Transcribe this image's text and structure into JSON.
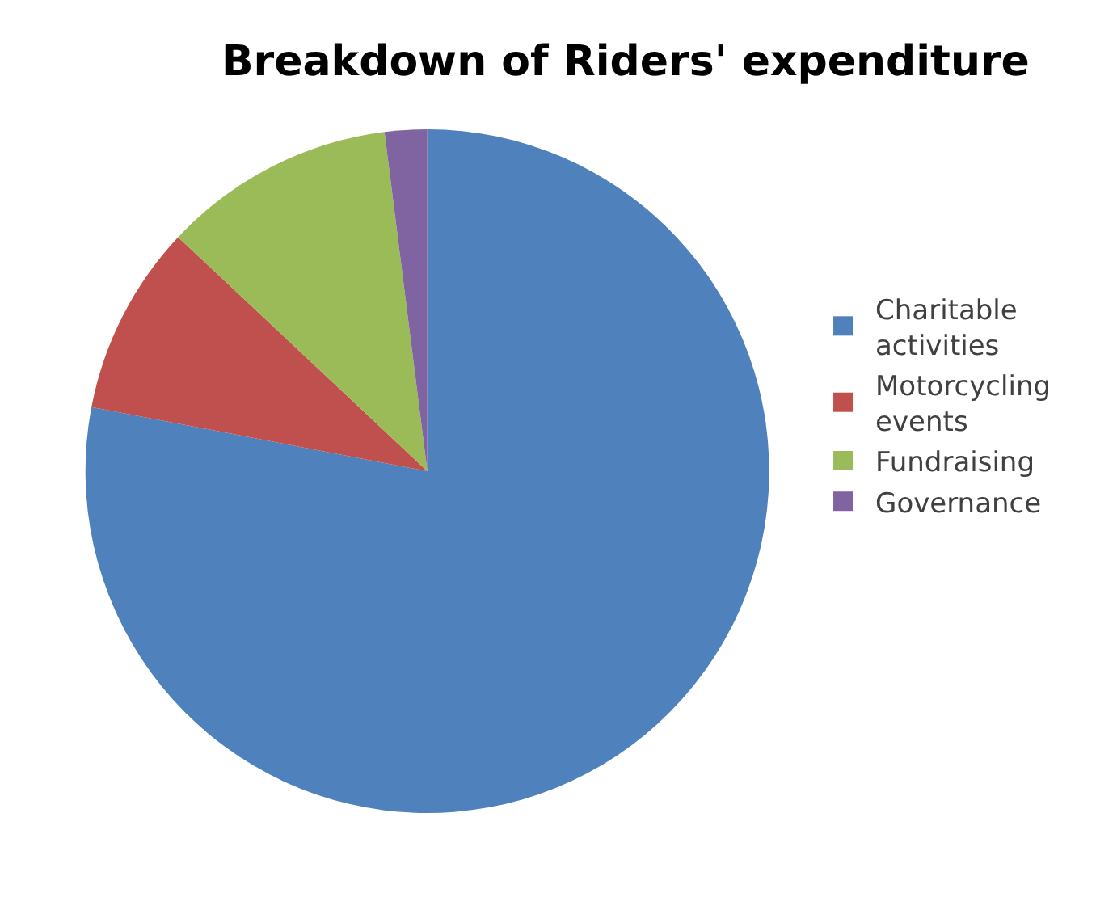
{
  "chart_data": {
    "type": "pie",
    "title": "Breakdown of Riders' expenditure",
    "categories": [
      "Charitable activities",
      "Motorcycling events",
      "Fundraising",
      "Governance"
    ],
    "values": [
      78,
      9,
      11,
      2
    ],
    "colors": [
      "#4f81bd",
      "#c0504d",
      "#9bbb59",
      "#8064a2"
    ],
    "legend": "right"
  }
}
